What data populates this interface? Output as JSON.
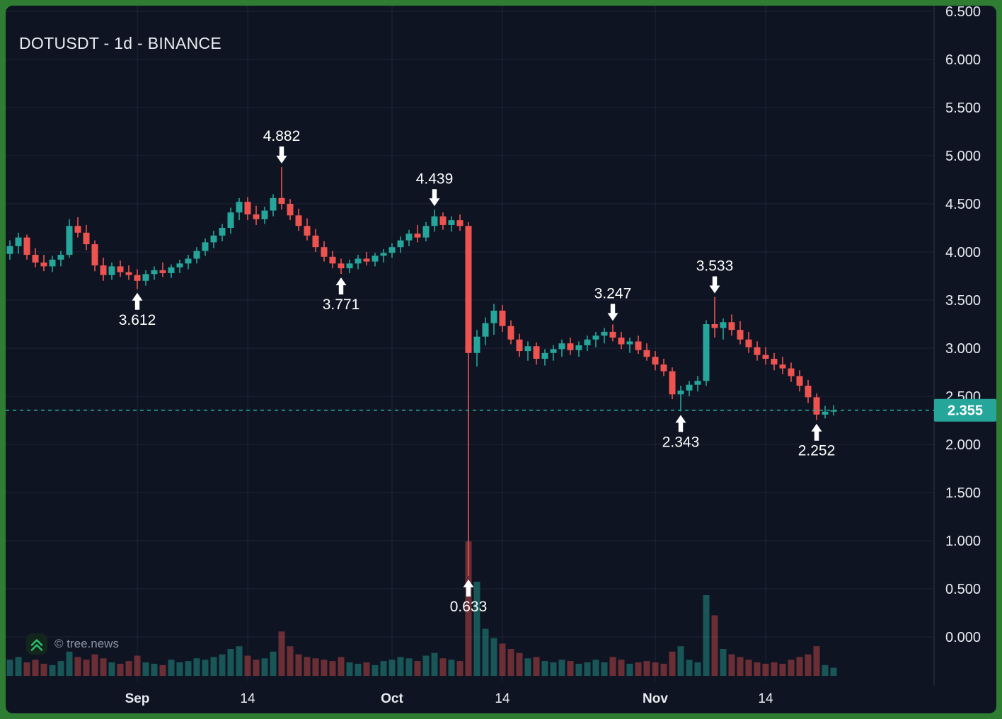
{
  "header": {
    "title": "DOTUSDT - 1d - BINANCE"
  },
  "watermark": {
    "text": "© tree.news",
    "icon": "chevrons-up-icon"
  },
  "colors": {
    "frame": "#2e7d32",
    "bg": "#0e1422",
    "up": "#26a69a",
    "down": "#ef5350",
    "grid": "rgba(151,166,195,0.12)",
    "axis_sep": "rgba(151,166,195,0.25)",
    "text_axis": "#e8ebf0",
    "text_annotation": "#ffffff",
    "price_label_bg": "#26a69a",
    "price_label_text": "#ffffff",
    "vol_up": "rgba(38,166,154,0.45)",
    "vol_down": "rgba(239,83,80,0.42)",
    "watermark_text": "#8b95a5",
    "watermark_icon": "#2dbd6e",
    "watermark_icon_bg": "#13261b"
  },
  "chart_data": {
    "type": "candlestick",
    "title": "DOTUSDT - 1d - BINANCE",
    "symbol": "DOTUSDT",
    "interval": "1d",
    "exchange": "BINANCE",
    "ylim": [
      0.0,
      6.5
    ],
    "y_tick_step": 0.5,
    "y_ticks": [
      "6.500",
      "6.000",
      "5.500",
      "5.000",
      "4.500",
      "4.000",
      "3.500",
      "3.000",
      "2.500",
      "2.000",
      "1.500",
      "1.000",
      "0.500",
      "0.000"
    ],
    "x_ticks": [
      {
        "label": "Sep",
        "date": "Sep 1",
        "strong": true
      },
      {
        "label": "14",
        "date": "Sep 14",
        "strong": false
      },
      {
        "label": "Oct",
        "date": "Oct 1",
        "strong": true
      },
      {
        "label": "14",
        "date": "Oct 14",
        "strong": false
      },
      {
        "label": "Nov",
        "date": "Nov 1",
        "strong": true
      },
      {
        "label": "14",
        "date": "Nov 14",
        "strong": false
      }
    ],
    "current_price": {
      "value": 2.355,
      "label": "2.355"
    },
    "annotations": [
      {
        "label": "3.612",
        "date": "Sep 1",
        "dir": "up"
      },
      {
        "label": "4.882",
        "date": "Sep 18",
        "dir": "down"
      },
      {
        "label": "3.771",
        "date": "Sep 25",
        "dir": "up"
      },
      {
        "label": "4.439",
        "date": "Oct 6",
        "dir": "down"
      },
      {
        "label": "0.633",
        "date": "Oct 10",
        "dir": "up"
      },
      {
        "label": "3.247",
        "date": "Oct 27",
        "dir": "down"
      },
      {
        "label": "2.343",
        "date": "Nov 4",
        "dir": "up"
      },
      {
        "label": "3.533",
        "date": "Nov 8",
        "dir": "down"
      },
      {
        "label": "2.252",
        "date": "Nov 20",
        "dir": "up"
      }
    ],
    "dates": [
      "Aug 17",
      "Aug 18",
      "Aug 19",
      "Aug 20",
      "Aug 21",
      "Aug 22",
      "Aug 23",
      "Aug 24",
      "Aug 25",
      "Aug 26",
      "Aug 27",
      "Aug 28",
      "Aug 29",
      "Aug 30",
      "Aug 31",
      "Sep 1",
      "Sep 2",
      "Sep 3",
      "Sep 4",
      "Sep 5",
      "Sep 6",
      "Sep 7",
      "Sep 8",
      "Sep 9",
      "Sep 10",
      "Sep 11",
      "Sep 12",
      "Sep 13",
      "Sep 14",
      "Sep 15",
      "Sep 16",
      "Sep 17",
      "Sep 18",
      "Sep 19",
      "Sep 20",
      "Sep 21",
      "Sep 22",
      "Sep 23",
      "Sep 24",
      "Sep 25",
      "Sep 26",
      "Sep 27",
      "Sep 28",
      "Sep 29",
      "Sep 30",
      "Oct 1",
      "Oct 2",
      "Oct 3",
      "Oct 4",
      "Oct 5",
      "Oct 6",
      "Oct 7",
      "Oct 8",
      "Oct 9",
      "Oct 10",
      "Oct 11",
      "Oct 12",
      "Oct 13",
      "Oct 14",
      "Oct 15",
      "Oct 16",
      "Oct 17",
      "Oct 18",
      "Oct 19",
      "Oct 20",
      "Oct 21",
      "Oct 22",
      "Oct 23",
      "Oct 24",
      "Oct 25",
      "Oct 26",
      "Oct 27",
      "Oct 28",
      "Oct 29",
      "Oct 30",
      "Oct 31",
      "Nov 1",
      "Nov 2",
      "Nov 3",
      "Nov 4",
      "Nov 5",
      "Nov 6",
      "Nov 7",
      "Nov 8",
      "Nov 9",
      "Nov 10",
      "Nov 11",
      "Nov 12",
      "Nov 13",
      "Nov 14",
      "Nov 15",
      "Nov 16",
      "Nov 17",
      "Nov 18",
      "Nov 19",
      "Nov 20",
      "Nov 21",
      "Nov 22"
    ],
    "ohlc": [
      [
        3.98,
        4.12,
        3.92,
        4.06
      ],
      [
        4.06,
        4.2,
        3.98,
        4.15
      ],
      [
        4.15,
        4.18,
        3.92,
        3.97
      ],
      [
        3.97,
        4.04,
        3.84,
        3.89
      ],
      [
        3.89,
        3.97,
        3.8,
        3.85
      ],
      [
        3.85,
        3.96,
        3.79,
        3.92
      ],
      [
        3.92,
        4.01,
        3.85,
        3.97
      ],
      [
        3.97,
        4.34,
        3.94,
        4.27
      ],
      [
        4.27,
        4.36,
        4.15,
        4.2
      ],
      [
        4.2,
        4.28,
        4.02,
        4.08
      ],
      [
        4.08,
        4.12,
        3.8,
        3.86
      ],
      [
        3.86,
        3.94,
        3.7,
        3.76
      ],
      [
        3.76,
        3.89,
        3.71,
        3.85
      ],
      [
        3.85,
        3.91,
        3.74,
        3.79
      ],
      [
        3.79,
        3.86,
        3.71,
        3.76
      ],
      [
        3.76,
        3.82,
        3.612,
        3.7
      ],
      [
        3.7,
        3.81,
        3.65,
        3.77
      ],
      [
        3.77,
        3.85,
        3.71,
        3.81
      ],
      [
        3.81,
        3.89,
        3.74,
        3.78
      ],
      [
        3.78,
        3.87,
        3.73,
        3.84
      ],
      [
        3.84,
        3.92,
        3.78,
        3.88
      ],
      [
        3.88,
        3.97,
        3.82,
        3.93
      ],
      [
        3.93,
        4.05,
        3.88,
        4.01
      ],
      [
        4.01,
        4.14,
        3.96,
        4.1
      ],
      [
        4.1,
        4.22,
        4.04,
        4.17
      ],
      [
        4.17,
        4.29,
        4.11,
        4.25
      ],
      [
        4.25,
        4.46,
        4.19,
        4.41
      ],
      [
        4.41,
        4.56,
        4.33,
        4.52
      ],
      [
        4.52,
        4.57,
        4.33,
        4.39
      ],
      [
        4.39,
        4.48,
        4.28,
        4.34
      ],
      [
        4.34,
        4.47,
        4.29,
        4.43
      ],
      [
        4.43,
        4.6,
        4.37,
        4.56
      ],
      [
        4.56,
        4.882,
        4.44,
        4.5
      ],
      [
        4.5,
        4.55,
        4.33,
        4.38
      ],
      [
        4.38,
        4.45,
        4.22,
        4.27
      ],
      [
        4.27,
        4.35,
        4.12,
        4.17
      ],
      [
        4.17,
        4.24,
        4.0,
        4.05
      ],
      [
        4.05,
        4.11,
        3.9,
        3.95
      ],
      [
        3.95,
        4.01,
        3.83,
        3.88
      ],
      [
        3.88,
        3.93,
        3.771,
        3.83
      ],
      [
        3.83,
        3.92,
        3.78,
        3.88
      ],
      [
        3.88,
        3.97,
        3.82,
        3.93
      ],
      [
        3.93,
        4.0,
        3.86,
        3.9
      ],
      [
        3.9,
        3.99,
        3.85,
        3.96
      ],
      [
        3.96,
        4.03,
        3.89,
        3.99
      ],
      [
        3.99,
        4.09,
        3.94,
        4.05
      ],
      [
        4.05,
        4.16,
        3.99,
        4.12
      ],
      [
        4.12,
        4.23,
        4.06,
        4.19
      ],
      [
        4.19,
        4.28,
        4.1,
        4.15
      ],
      [
        4.15,
        4.31,
        4.11,
        4.27
      ],
      [
        4.27,
        4.439,
        4.21,
        4.37
      ],
      [
        4.37,
        4.41,
        4.23,
        4.28
      ],
      [
        4.28,
        4.37,
        4.21,
        4.33
      ],
      [
        4.33,
        4.39,
        4.22,
        4.27
      ],
      [
        4.27,
        4.31,
        0.633,
        2.95
      ],
      [
        2.95,
        3.19,
        2.81,
        3.12
      ],
      [
        3.12,
        3.32,
        3.03,
        3.26
      ],
      [
        3.26,
        3.46,
        3.14,
        3.39
      ],
      [
        3.39,
        3.45,
        3.17,
        3.23
      ],
      [
        3.23,
        3.29,
        3.04,
        3.09
      ],
      [
        3.09,
        3.15,
        2.91,
        2.97
      ],
      [
        2.97,
        3.07,
        2.87,
        3.02
      ],
      [
        3.02,
        3.06,
        2.83,
        2.89
      ],
      [
        2.89,
        2.99,
        2.82,
        2.95
      ],
      [
        2.95,
        3.03,
        2.87,
        2.99
      ],
      [
        2.99,
        3.09,
        2.91,
        3.05
      ],
      [
        3.05,
        3.11,
        2.93,
        2.98
      ],
      [
        2.98,
        3.07,
        2.91,
        3.03
      ],
      [
        3.03,
        3.13,
        2.97,
        3.09
      ],
      [
        3.09,
        3.17,
        3.01,
        3.13
      ],
      [
        3.13,
        3.21,
        3.05,
        3.17
      ],
      [
        3.17,
        3.247,
        3.07,
        3.11
      ],
      [
        3.11,
        3.17,
        2.99,
        3.04
      ],
      [
        3.04,
        3.11,
        2.95,
        3.07
      ],
      [
        3.07,
        3.13,
        2.94,
        2.98
      ],
      [
        2.98,
        3.05,
        2.87,
        2.91
      ],
      [
        2.91,
        2.97,
        2.77,
        2.83
      ],
      [
        2.83,
        2.89,
        2.71,
        2.76
      ],
      [
        2.76,
        2.8,
        2.47,
        2.52
      ],
      [
        2.52,
        2.61,
        2.343,
        2.56
      ],
      [
        2.56,
        2.66,
        2.5,
        2.62
      ],
      [
        2.62,
        2.71,
        2.55,
        2.66
      ],
      [
        2.66,
        3.29,
        2.61,
        3.25
      ],
      [
        3.25,
        3.533,
        3.11,
        3.21
      ],
      [
        3.21,
        3.31,
        3.09,
        3.27
      ],
      [
        3.27,
        3.35,
        3.13,
        3.19
      ],
      [
        3.19,
        3.28,
        3.04,
        3.09
      ],
      [
        3.09,
        3.17,
        2.95,
        3.01
      ],
      [
        3.01,
        3.07,
        2.87,
        2.93
      ],
      [
        2.93,
        3.01,
        2.83,
        2.89
      ],
      [
        2.89,
        2.95,
        2.77,
        2.83
      ],
      [
        2.83,
        2.91,
        2.73,
        2.79
      ],
      [
        2.79,
        2.85,
        2.65,
        2.71
      ],
      [
        2.71,
        2.77,
        2.55,
        2.61
      ],
      [
        2.61,
        2.67,
        2.43,
        2.49
      ],
      [
        2.49,
        2.53,
        2.252,
        2.31
      ],
      [
        2.31,
        2.4,
        2.27,
        2.34
      ],
      [
        2.34,
        2.41,
        2.3,
        2.355
      ]
    ],
    "volume": [
      12,
      14,
      10,
      12,
      9,
      8,
      11,
      18,
      14,
      12,
      16,
      13,
      10,
      9,
      11,
      15,
      10,
      9,
      8,
      12,
      10,
      11,
      13,
      12,
      14,
      16,
      20,
      22,
      15,
      12,
      13,
      18,
      33,
      22,
      16,
      14,
      13,
      12,
      11,
      14,
      10,
      9,
      10,
      8,
      11,
      12,
      14,
      13,
      11,
      15,
      17,
      13,
      12,
      11,
      100,
      70,
      35,
      28,
      24,
      20,
      17,
      13,
      14,
      11,
      10,
      12,
      11,
      9,
      10,
      12,
      10,
      14,
      12,
      9,
      10,
      11,
      10,
      9,
      18,
      22,
      12,
      10,
      60,
      45,
      20,
      16,
      14,
      12,
      10,
      9,
      10,
      9,
      12,
      14,
      16,
      22,
      8,
      6
    ],
    "grid": true,
    "legend": "none"
  }
}
